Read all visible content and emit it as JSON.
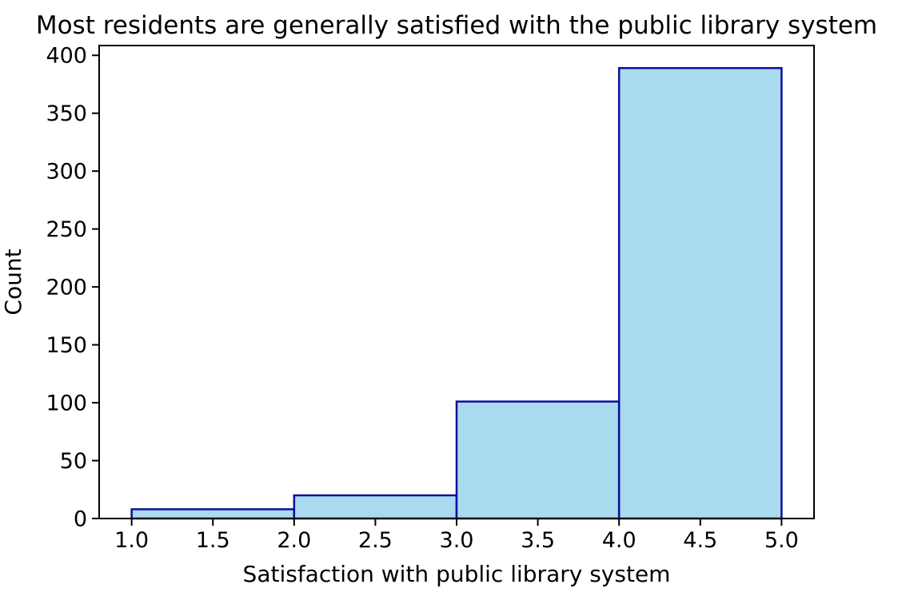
{
  "figure": {
    "background_color": "#ffffff"
  },
  "chart_data": {
    "type": "bar",
    "subtype": "histogram",
    "title": "Most residents are generally satisfied with the public library system",
    "xlabel": "Satisfaction with public library system",
    "ylabel": "Count",
    "bin_edges": [
      1.0,
      2.0,
      3.0,
      4.0,
      5.0
    ],
    "counts": [
      8,
      20,
      101,
      389
    ],
    "xtick_values": [
      1.0,
      1.5,
      2.0,
      2.5,
      3.0,
      3.5,
      4.0,
      4.5,
      5.0
    ],
    "xtick_labels": [
      "1.0",
      "1.5",
      "2.0",
      "2.5",
      "3.0",
      "3.5",
      "4.0",
      "4.5",
      "5.0"
    ],
    "ytick_values": [
      0,
      50,
      100,
      150,
      200,
      250,
      300,
      350,
      400
    ],
    "ytick_labels": [
      "0",
      "50",
      "100",
      "150",
      "200",
      "250",
      "300",
      "350",
      "400"
    ],
    "xlim": [
      0.8,
      5.2
    ],
    "ylim": [
      0,
      408.45
    ],
    "grid": false,
    "legend": null,
    "bar_fill_color": "#A9DAEE",
    "bar_edge_color": "#0D0D9C",
    "axis_color": "#000000",
    "text_color": "#000000"
  }
}
